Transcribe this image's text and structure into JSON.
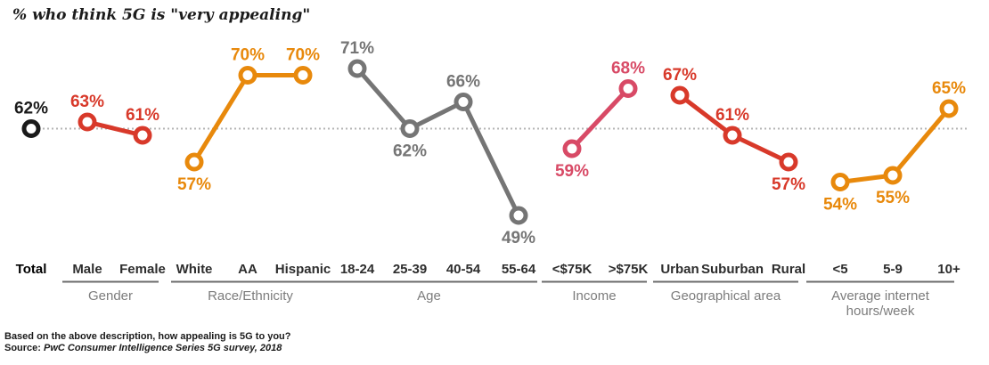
{
  "title": "% who think 5G is \"very appealing\"",
  "footer": {
    "question": "Based on the above description, how appealing is 5G to you?",
    "source_prefix": "Source: ",
    "source": "PwC Consumer Intelligence Series 5G survey, 2018"
  },
  "colors": {
    "total": "#1a1a1a",
    "red": "#d8392a",
    "orange": "#e8890c",
    "gray": "#757575",
    "rose": "#d84a66",
    "refline": "#b4b4b4",
    "underline": "#6b6b6b"
  },
  "chart_data": {
    "type": "line",
    "title": "% who think 5G is \"very appealing\"",
    "reference_value": 62,
    "ylim": [
      45,
      75
    ],
    "grid": false,
    "legend": "none",
    "groups": [
      {
        "name": "Total",
        "color_key": "total",
        "is_total": true,
        "points": [
          {
            "label": "Total",
            "value": 62,
            "label_pos": "above"
          }
        ]
      },
      {
        "name": "Gender",
        "color_key": "red",
        "points": [
          {
            "label": "Male",
            "value": 63,
            "label_pos": "above"
          },
          {
            "label": "Female",
            "value": 61,
            "label_pos": "above"
          }
        ]
      },
      {
        "name": "Race/Ethnicity",
        "color_key": "orange",
        "points": [
          {
            "label": "White",
            "value": 57,
            "label_pos": "below"
          },
          {
            "label": "AA",
            "value": 70,
            "label_pos": "above"
          },
          {
            "label": "Hispanic",
            "value": 70,
            "label_pos": "above"
          }
        ]
      },
      {
        "name": "Age",
        "color_key": "gray",
        "points": [
          {
            "label": "18-24",
            "value": 71,
            "label_pos": "above"
          },
          {
            "label": "25-39",
            "value": 62,
            "label_pos": "below"
          },
          {
            "label": "40-54",
            "value": 66,
            "label_pos": "above"
          },
          {
            "label": "55-64",
            "value": 49,
            "label_pos": "below"
          }
        ]
      },
      {
        "name": "Income",
        "color_key": "rose",
        "points": [
          {
            "label": "<$75K",
            "value": 59,
            "label_pos": "below"
          },
          {
            "label": ">$75K",
            "value": 68,
            "label_pos": "above"
          }
        ]
      },
      {
        "name": "Geographical area",
        "color_key": "red",
        "points": [
          {
            "label": "Urban",
            "value": 67,
            "label_pos": "above"
          },
          {
            "label": "Suburban",
            "value": 61,
            "label_pos": "above"
          },
          {
            "label": "Rural",
            "value": 57,
            "label_pos": "below"
          }
        ]
      },
      {
        "name": "Average internet hours/week",
        "color_key": "orange",
        "name_lines": [
          "Average internet",
          "hours/week"
        ],
        "points": [
          {
            "label": "<5",
            "value": 54,
            "label_pos": "below"
          },
          {
            "label": "5-9",
            "value": 55,
            "label_pos": "below"
          },
          {
            "label": "10+",
            "value": 65,
            "label_pos": "above"
          }
        ]
      }
    ]
  }
}
